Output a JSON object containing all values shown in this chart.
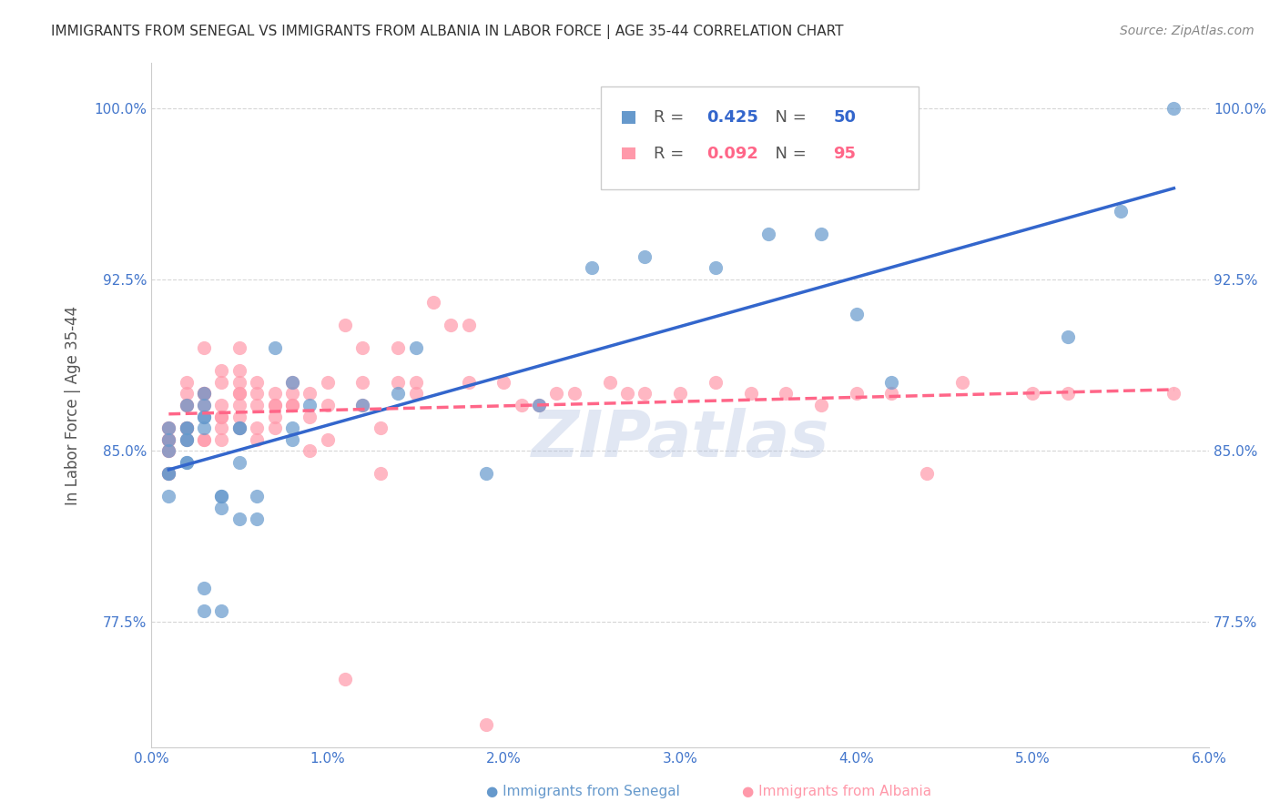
{
  "title": "IMMIGRANTS FROM SENEGAL VS IMMIGRANTS FROM ALBANIA IN LABOR FORCE | AGE 35-44 CORRELATION CHART",
  "source": "Source: ZipAtlas.com",
  "xlabel": "",
  "ylabel": "In Labor Force | Age 35-44",
  "xlim": [
    0.0,
    0.06
  ],
  "ylim": [
    0.72,
    1.02
  ],
  "yticks": [
    0.775,
    0.85,
    0.925,
    1.0
  ],
  "ytick_labels": [
    "77.5%",
    "85.0%",
    "92.5%",
    "100.0%"
  ],
  "xticks": [
    0.0,
    0.01,
    0.02,
    0.03,
    0.04,
    0.05,
    0.06
  ],
  "xtick_labels": [
    "0.0%",
    "1.0%",
    "2.0%",
    "3.0%",
    "4.0%",
    "5.0%",
    "6.0%"
  ],
  "senegal_R": 0.425,
  "senegal_N": 50,
  "albania_R": 0.092,
  "albania_N": 95,
  "senegal_color": "#6699cc",
  "albania_color": "#ff99aa",
  "senegal_line_color": "#3366cc",
  "albania_line_color": "#ff6688",
  "background_color": "#ffffff",
  "grid_color": "#cccccc",
  "title_color": "#333333",
  "axis_color": "#4477cc",
  "watermark": "ZIPatlas",
  "senegal_x": [
    0.001,
    0.001,
    0.001,
    0.001,
    0.002,
    0.001,
    0.001,
    0.002,
    0.002,
    0.002,
    0.003,
    0.002,
    0.003,
    0.002,
    0.003,
    0.002,
    0.003,
    0.003,
    0.004,
    0.004,
    0.004,
    0.005,
    0.005,
    0.005,
    0.006,
    0.006,
    0.005,
    0.004,
    0.003,
    0.003,
    0.008,
    0.007,
    0.008,
    0.009,
    0.008,
    0.012,
    0.014,
    0.015,
    0.019,
    0.022,
    0.025,
    0.028,
    0.032,
    0.035,
    0.038,
    0.04,
    0.042,
    0.052,
    0.055,
    0.058
  ],
  "senegal_y": [
    0.85,
    0.83,
    0.86,
    0.84,
    0.87,
    0.855,
    0.84,
    0.86,
    0.845,
    0.855,
    0.875,
    0.86,
    0.86,
    0.855,
    0.87,
    0.845,
    0.865,
    0.865,
    0.83,
    0.83,
    0.825,
    0.86,
    0.86,
    0.845,
    0.83,
    0.82,
    0.82,
    0.78,
    0.78,
    0.79,
    0.88,
    0.895,
    0.855,
    0.87,
    0.86,
    0.87,
    0.875,
    0.895,
    0.84,
    0.87,
    0.93,
    0.935,
    0.93,
    0.945,
    0.945,
    0.91,
    0.88,
    0.9,
    0.955,
    1.0
  ],
  "albania_x": [
    0.001,
    0.001,
    0.001,
    0.001,
    0.001,
    0.001,
    0.001,
    0.001,
    0.001,
    0.002,
    0.002,
    0.002,
    0.002,
    0.002,
    0.002,
    0.002,
    0.002,
    0.003,
    0.003,
    0.003,
    0.003,
    0.003,
    0.003,
    0.003,
    0.004,
    0.004,
    0.004,
    0.004,
    0.004,
    0.004,
    0.004,
    0.005,
    0.005,
    0.005,
    0.005,
    0.005,
    0.005,
    0.005,
    0.005,
    0.006,
    0.006,
    0.006,
    0.006,
    0.006,
    0.007,
    0.007,
    0.007,
    0.007,
    0.007,
    0.008,
    0.008,
    0.008,
    0.008,
    0.009,
    0.009,
    0.009,
    0.01,
    0.01,
    0.01,
    0.011,
    0.011,
    0.012,
    0.012,
    0.012,
    0.013,
    0.013,
    0.014,
    0.014,
    0.015,
    0.015,
    0.016,
    0.017,
    0.018,
    0.018,
    0.019,
    0.02,
    0.021,
    0.022,
    0.023,
    0.024,
    0.026,
    0.027,
    0.028,
    0.03,
    0.032,
    0.034,
    0.036,
    0.038,
    0.04,
    0.042,
    0.044,
    0.046,
    0.05,
    0.052,
    0.058
  ],
  "albania_y": [
    0.85,
    0.84,
    0.855,
    0.86,
    0.855,
    0.84,
    0.85,
    0.855,
    0.86,
    0.87,
    0.86,
    0.875,
    0.86,
    0.88,
    0.855,
    0.87,
    0.86,
    0.875,
    0.875,
    0.87,
    0.855,
    0.855,
    0.895,
    0.875,
    0.885,
    0.88,
    0.865,
    0.86,
    0.855,
    0.87,
    0.865,
    0.895,
    0.885,
    0.87,
    0.875,
    0.875,
    0.88,
    0.865,
    0.86,
    0.88,
    0.87,
    0.86,
    0.875,
    0.855,
    0.87,
    0.865,
    0.86,
    0.87,
    0.875,
    0.87,
    0.875,
    0.87,
    0.88,
    0.875,
    0.865,
    0.85,
    0.88,
    0.87,
    0.855,
    0.75,
    0.905,
    0.87,
    0.88,
    0.895,
    0.86,
    0.84,
    0.88,
    0.895,
    0.88,
    0.875,
    0.915,
    0.905,
    0.88,
    0.905,
    0.73,
    0.88,
    0.87,
    0.87,
    0.875,
    0.875,
    0.88,
    0.875,
    0.875,
    0.875,
    0.88,
    0.875,
    0.875,
    0.87,
    0.875,
    0.875,
    0.84,
    0.88,
    0.875,
    0.875,
    0.875
  ]
}
